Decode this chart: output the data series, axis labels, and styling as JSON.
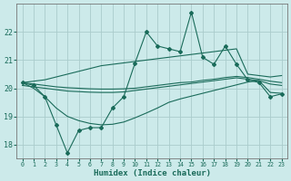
{
  "title": "",
  "xlabel": "Humidex (Indice chaleur)",
  "bg_color": "#cceaea",
  "grid_color": "#aacccc",
  "line_color": "#1a6b5a",
  "xlim": [
    -0.5,
    23.5
  ],
  "ylim": [
    17.5,
    23.0
  ],
  "yticks": [
    18,
    19,
    20,
    21,
    22
  ],
  "xtick_labels": [
    "0",
    "1",
    "2",
    "3",
    "4",
    "5",
    "6",
    "7",
    "8",
    "9",
    "10",
    "11",
    "12",
    "13",
    "14",
    "15",
    "16",
    "17",
    "18",
    "19",
    "20",
    "21",
    "22",
    "23"
  ],
  "main_series": [
    20.2,
    20.1,
    19.7,
    18.7,
    17.7,
    18.5,
    18.6,
    18.6,
    19.3,
    19.7,
    20.9,
    22.0,
    21.5,
    21.4,
    21.3,
    22.7,
    21.1,
    20.85,
    21.5,
    20.85,
    20.3,
    20.2,
    19.7,
    19.8
  ],
  "upper_series": [
    20.2,
    20.25,
    20.3,
    20.4,
    20.5,
    20.6,
    20.7,
    20.8,
    20.85,
    20.9,
    20.95,
    21.0,
    21.05,
    21.1,
    21.15,
    21.2,
    21.25,
    21.3,
    21.35,
    21.4,
    20.5,
    20.45,
    20.4,
    20.45
  ],
  "mid_upper_series": [
    20.2,
    20.15,
    20.1,
    20.05,
    20.02,
    20.0,
    19.98,
    19.97,
    19.97,
    19.98,
    20.0,
    20.05,
    20.1,
    20.15,
    20.2,
    20.22,
    20.28,
    20.32,
    20.38,
    20.42,
    20.38,
    20.32,
    20.25,
    20.2
  ],
  "mid_lower_series": [
    20.1,
    20.05,
    20.0,
    19.95,
    19.9,
    19.88,
    19.86,
    19.85,
    19.85,
    19.87,
    19.92,
    19.97,
    20.02,
    20.07,
    20.12,
    20.17,
    20.22,
    20.27,
    20.32,
    20.37,
    20.32,
    20.27,
    20.15,
    20.1
  ],
  "lower_series": [
    20.2,
    20.0,
    19.7,
    19.3,
    19.0,
    18.85,
    18.75,
    18.7,
    18.72,
    18.8,
    18.95,
    19.12,
    19.3,
    19.5,
    19.62,
    19.72,
    19.82,
    19.92,
    20.02,
    20.12,
    20.22,
    20.27,
    19.85,
    19.82
  ]
}
